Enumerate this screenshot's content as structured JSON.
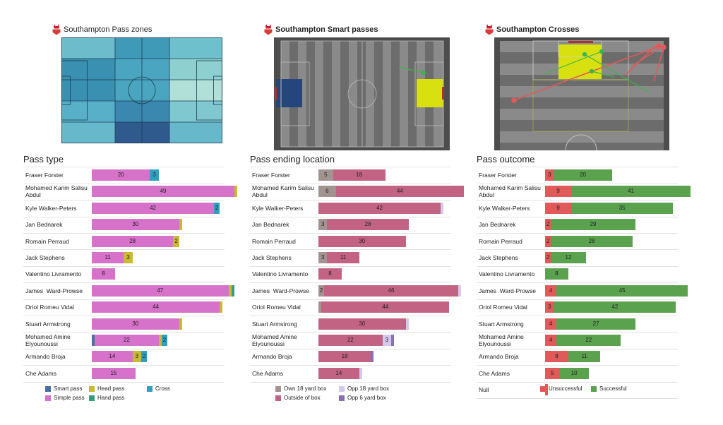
{
  "chart_data": [
    {
      "type": "pitch",
      "title": "Southampton Pass zones"
    },
    {
      "type": "pitch",
      "title": "Southampton Smart passes"
    },
    {
      "type": "pitch",
      "title": "Southampton Crosses"
    },
    {
      "type": "bar",
      "stacked": true,
      "title": "Pass type",
      "categories": [
        "Fraser Forster",
        "Mohamed Karim Salisu Abdul",
        "Kyle Walker-Peters",
        "Jan Bednarek",
        "Romain Perraud",
        "Jack Stephens",
        "Valentino Livramento",
        "James  Ward-Prowse",
        "Oriol Romeu Vidal",
        "Stuart Armstrong",
        "Mohamed Amine Elyounoussi",
        "Armando Broja",
        "Che Adams"
      ],
      "xlim": [
        0,
        50
      ],
      "series": [
        {
          "name": "Smart pass",
          "color": "#4a6fa5",
          "values": [
            null,
            null,
            null,
            null,
            null,
            null,
            null,
            null,
            null,
            null,
            1,
            null,
            null
          ]
        },
        {
          "name": "Simple pass",
          "color": "#d672c9",
          "values": [
            20,
            49,
            42,
            30,
            28,
            11,
            8,
            47,
            44,
            30,
            22,
            14,
            15
          ]
        },
        {
          "name": "Head pass",
          "color": "#c9b935",
          "values": [
            null,
            1,
            null,
            1,
            2,
            3,
            null,
            1,
            1,
            1,
            1,
            3,
            null
          ]
        },
        {
          "name": "Hand pass",
          "color": "#3a9a7f",
          "values": [
            null,
            null,
            null,
            null,
            null,
            null,
            null,
            1,
            null,
            null,
            null,
            null,
            null
          ]
        },
        {
          "name": "Cross",
          "color": "#2fa0c2",
          "values": [
            3,
            null,
            2,
            null,
            null,
            null,
            null,
            null,
            null,
            null,
            2,
            2,
            null
          ]
        }
      ]
    },
    {
      "type": "bar",
      "stacked": true,
      "title": "Pass ending location",
      "categories": [
        "Fraser Forster",
        "Mohamed Karim Salisu Abdul",
        "Kyle Walker-Peters",
        "Jan Bednarek",
        "Romain Perraud",
        "Jack Stephens",
        "Valentino Livramento",
        "James  Ward-Prowse",
        "Oriol Romeu Vidal",
        "Stuart Armstrong",
        "Mohamed Amine Elyounoussi",
        "Armando Broja",
        "Che Adams"
      ],
      "xlim": [
        0,
        50
      ],
      "series": [
        {
          "name": "Own 18 yard box",
          "color": "#a39390",
          "values": [
            5,
            6,
            null,
            3,
            null,
            3,
            null,
            2,
            1,
            null,
            null,
            null,
            null
          ]
        },
        {
          "name": "Outside of box",
          "color": "#c36384",
          "values": [
            18,
            44,
            42,
            28,
            30,
            11,
            8,
            46,
            44,
            30,
            22,
            18,
            14
          ]
        },
        {
          "name": "Opp 18 yard box",
          "color": "#d6c8ec",
          "values": [
            null,
            null,
            1,
            null,
            null,
            null,
            null,
            1,
            null,
            1,
            3,
            null,
            1
          ]
        },
        {
          "name": "Opp 6 yard box",
          "color": "#8a70b2",
          "values": [
            null,
            null,
            null,
            null,
            null,
            null,
            null,
            null,
            null,
            null,
            1,
            1,
            null
          ]
        }
      ]
    },
    {
      "type": "bar",
      "stacked": true,
      "title": "Pass outcome",
      "categories": [
        "Fraser Forster",
        "Mohamed Karim Salisu Abdul",
        "Kyle Walker-Peters",
        "Jan Bednarek",
        "Romain Perraud",
        "Jack Stephens",
        "Valentino Livramento",
        "James  Ward-Prowse",
        "Oriol Romeu Vidal",
        "Stuart Armstrong",
        "Mohamed Amine Elyounoussi",
        "Armando Broja",
        "Che Adams",
        "Null"
      ],
      "xlim": [
        0,
        50
      ],
      "series": [
        {
          "name": "Unsuccessful",
          "color": "#e05a5a",
          "values": [
            3,
            9,
            9,
            2,
            2,
            2,
            null,
            4,
            3,
            4,
            4,
            8,
            5,
            1
          ]
        },
        {
          "name": "Successful",
          "color": "#5aa24e",
          "values": [
            20,
            41,
            35,
            29,
            28,
            12,
            8,
            45,
            42,
            27,
            22,
            11,
            10,
            null
          ]
        }
      ]
    }
  ]
}
